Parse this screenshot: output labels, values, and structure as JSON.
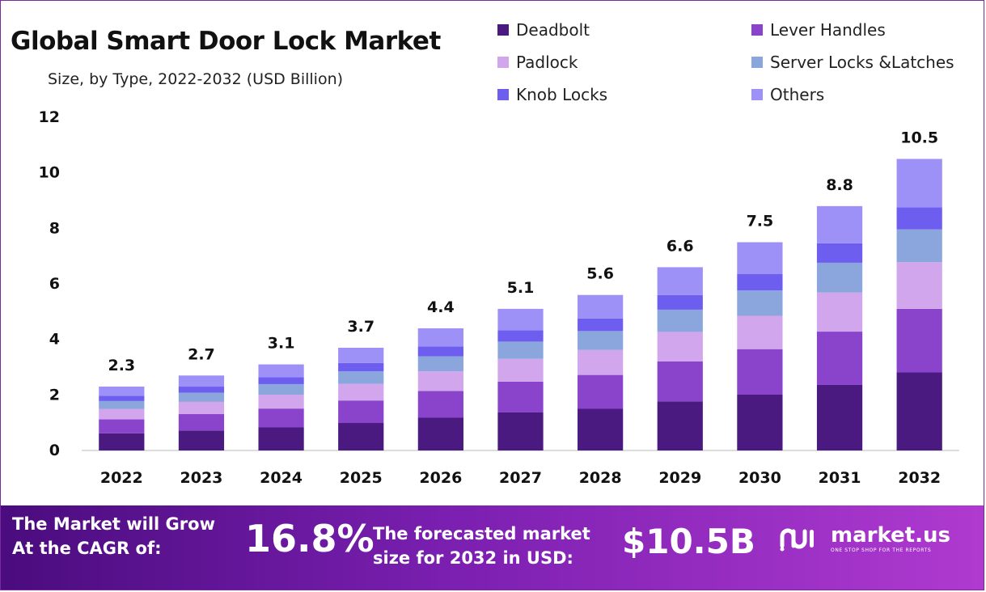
{
  "chart_data": {
    "type": "bar",
    "stacked": true,
    "title": "Global Smart Door Lock Market",
    "subtitle": "Size, by Type, 2022-2032 (USD Billion)",
    "xlabel": "",
    "ylabel": "",
    "ylim": [
      0,
      12
    ],
    "yticks": [
      "0",
      "2",
      "4",
      "6",
      "8",
      "10",
      "12"
    ],
    "categories": [
      "2022",
      "2023",
      "2024",
      "2025",
      "2026",
      "2027",
      "2028",
      "2029",
      "2030",
      "2031",
      "2032"
    ],
    "totals": [
      2.3,
      2.7,
      3.1,
      3.7,
      4.4,
      5.1,
      5.6,
      6.6,
      7.5,
      8.8,
      10.5
    ],
    "total_labels": [
      "2.3",
      "2.7",
      "3.1",
      "3.7",
      "4.4",
      "5.1",
      "5.6",
      "6.6",
      "7.5",
      "8.8",
      "10.5"
    ],
    "legend_position": "top-right",
    "series": [
      {
        "name": "Deadbolt",
        "color": "#4a1a80",
        "values": [
          0.62,
          0.72,
          0.83,
          0.99,
          1.18,
          1.37,
          1.5,
          1.77,
          2.01,
          2.36,
          2.81
        ]
      },
      {
        "name": "Lever Handles",
        "color": "#8a44cc",
        "values": [
          0.5,
          0.59,
          0.68,
          0.81,
          0.96,
          1.11,
          1.22,
          1.44,
          1.64,
          1.92,
          2.29
        ]
      },
      {
        "name": "Padlock",
        "color": "#d2a6ec",
        "values": [
          0.38,
          0.44,
          0.5,
          0.6,
          0.71,
          0.82,
          0.9,
          1.06,
          1.2,
          1.41,
          1.68
        ]
      },
      {
        "name": "Server Locks &Latches",
        "color": "#8aa6dc",
        "values": [
          0.28,
          0.33,
          0.38,
          0.45,
          0.54,
          0.62,
          0.68,
          0.8,
          0.91,
          1.07,
          1.18
        ]
      },
      {
        "name": "Knob Locks",
        "color": "#6e5ef0",
        "values": [
          0.19,
          0.22,
          0.25,
          0.3,
          0.36,
          0.41,
          0.45,
          0.53,
          0.6,
          0.7,
          0.8
        ]
      },
      {
        "name": "Others",
        "color": "#9d90f6",
        "values": [
          0.33,
          0.4,
          0.46,
          0.55,
          0.65,
          0.77,
          0.85,
          1.0,
          1.14,
          1.34,
          1.74
        ]
      }
    ]
  },
  "legend": {
    "items": [
      {
        "label": "Deadbolt",
        "color": "#4a1a80"
      },
      {
        "label": "Lever Handles",
        "color": "#8a44cc"
      },
      {
        "label": "Padlock",
        "color": "#d2a6ec"
      },
      {
        "label": "Server Locks &Latches",
        "color": "#8aa6dc"
      },
      {
        "label": "Knob Locks",
        "color": "#6e5ef0"
      },
      {
        "label": "Others",
        "color": "#9d90f6"
      }
    ]
  },
  "banner": {
    "cagr_label_line1": "The Market will Grow",
    "cagr_label_line2": "At the CAGR of:",
    "cagr_value": "16.8%",
    "forecast_label_line1": "The forecasted market",
    "forecast_label_line2": "size for 2032 in USD:",
    "forecast_value": "$10.5B",
    "brand_name": "market.us",
    "brand_tagline": "ONE STOP SHOP FOR THE REPORTS",
    "logo_icon": "market-us-logo-icon"
  },
  "colors": {
    "banner_start": "#4a0c7e",
    "banner_end": "#b03ad0",
    "axis_line": "#bbbbbb"
  }
}
